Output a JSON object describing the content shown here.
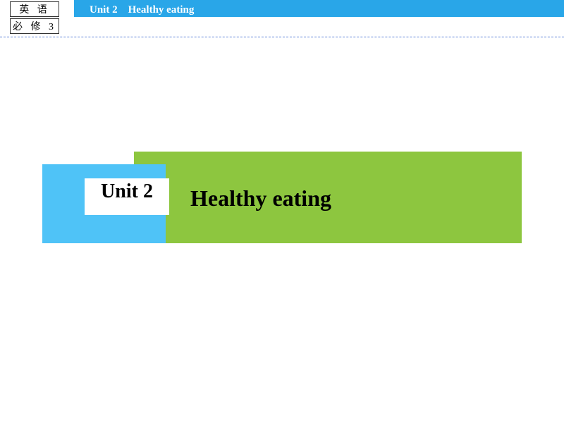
{
  "colors": {
    "topbar_bg": "#29a6e8",
    "divider": "#5a7fd6",
    "banner_green": "#8dc63f",
    "banner_blue": "#4fc3f7"
  },
  "header": {
    "label1": "英 语",
    "label2": "必 修 3",
    "title": "Unit 2　Healthy eating"
  },
  "banner": {
    "unit_label": "Unit 2",
    "title": "Healthy eating"
  }
}
